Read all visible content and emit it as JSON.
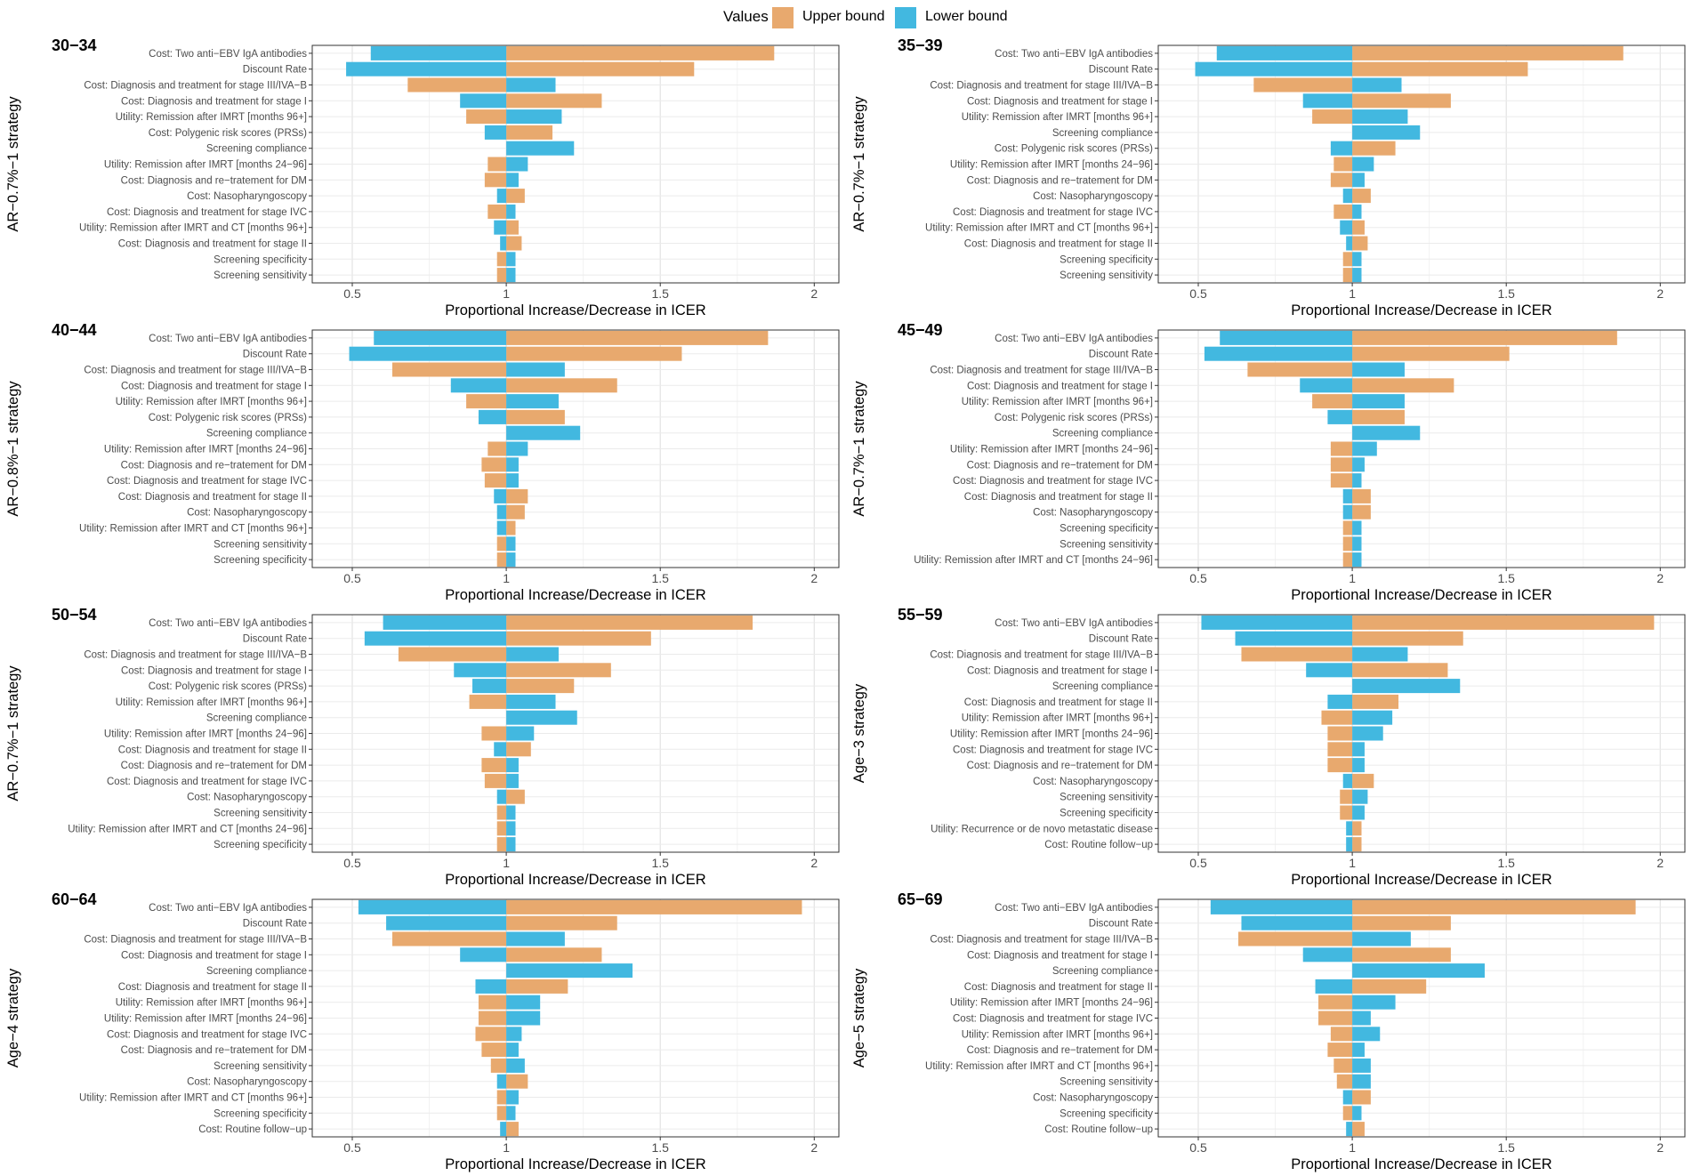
{
  "legend": {
    "title": "Values",
    "items": [
      {
        "label": "Upper bound",
        "color": "#E8A96E"
      },
      {
        "label": "Lower bound",
        "color": "#42B8E0"
      }
    ]
  },
  "chart_data": [
    {
      "type": "bar",
      "orientation": "tornado",
      "panel_title": "30−34",
      "ylabel": "AR−0.7%−1 strategy",
      "xlabel": "Proportional Increase/Decrease in ICER",
      "xlim": [
        0.37,
        2.08
      ],
      "baseline": 1,
      "xticks": [
        0.5,
        1,
        1.5,
        2
      ],
      "categories": [
        "Cost: Two anti−EBV IgA antibodies",
        "Discount Rate",
        "Cost: Diagnosis and treatment for stage III/IVA−B",
        "Cost: Diagnosis and treatment for stage I",
        "Utility: Remission after IMRT [months 96+]",
        "Cost: Polygenic risk scores (PRSs)",
        "Screening compliance",
        "Utility: Remission after IMRT [months 24−96]",
        "Cost: Diagnosis and re−tratement for DM",
        "Cost: Nasopharyngoscopy",
        "Cost: Diagnosis and treatment for stage IVC",
        "Utility: Remission after IMRT and CT [months 96+]",
        "Cost: Diagnosis and treatment for stage II",
        "Screening specificity",
        "Screening sensitivity"
      ],
      "series": [
        {
          "name": "Upper bound",
          "values": [
            1.87,
            1.61,
            0.68,
            1.31,
            0.87,
            1.15,
            1.0,
            0.94,
            0.93,
            1.06,
            0.94,
            1.04,
            1.05,
            0.97,
            0.97
          ]
        },
        {
          "name": "Lower bound",
          "values": [
            0.56,
            0.48,
            1.16,
            0.85,
            1.18,
            0.93,
            1.22,
            1.07,
            1.04,
            0.97,
            1.03,
            0.96,
            0.98,
            1.03,
            1.03
          ]
        }
      ]
    },
    {
      "type": "bar",
      "orientation": "tornado",
      "panel_title": "35−39",
      "ylabel": "AR−0.7%−1 strategy",
      "xlabel": "Proportional Increase/Decrease in ICER",
      "xlim": [
        0.37,
        2.08
      ],
      "baseline": 1,
      "xticks": [
        0.5,
        1,
        1.5,
        2
      ],
      "categories": [
        "Cost: Two anti−EBV IgA antibodies",
        "Discount Rate",
        "Cost: Diagnosis and treatment for stage III/IVA−B",
        "Cost: Diagnosis and treatment for stage I",
        "Utility: Remission after IMRT [months 96+]",
        "Screening compliance",
        "Cost: Polygenic risk scores (PRSs)",
        "Utility: Remission after IMRT [months 24−96]",
        "Cost: Diagnosis and re−tratement for DM",
        "Cost: Nasopharyngoscopy",
        "Cost: Diagnosis and treatment for stage IVC",
        "Utility: Remission after IMRT and CT [months 96+]",
        "Cost: Diagnosis and treatment for stage II",
        "Screening specificity",
        "Screening sensitivity"
      ],
      "series": [
        {
          "name": "Upper bound",
          "values": [
            1.88,
            1.57,
            0.68,
            1.32,
            0.87,
            1.0,
            1.14,
            0.94,
            0.93,
            1.06,
            0.94,
            1.04,
            1.05,
            0.97,
            0.97
          ]
        },
        {
          "name": "Lower bound",
          "values": [
            0.56,
            0.49,
            1.16,
            0.84,
            1.18,
            1.22,
            0.93,
            1.07,
            1.04,
            0.97,
            1.03,
            0.96,
            0.98,
            1.03,
            1.03
          ]
        }
      ]
    },
    {
      "type": "bar",
      "orientation": "tornado",
      "panel_title": "40−44",
      "ylabel": "AR−0.8%−1 strategy",
      "xlabel": "Proportional Increase/Decrease in ICER",
      "xlim": [
        0.37,
        2.08
      ],
      "baseline": 1,
      "xticks": [
        0.5,
        1,
        1.5,
        2
      ],
      "categories": [
        "Cost: Two anti−EBV IgA antibodies",
        "Discount Rate",
        "Cost: Diagnosis and treatment for stage III/IVA−B",
        "Cost: Diagnosis and treatment for stage I",
        "Utility: Remission after IMRT [months 96+]",
        "Cost: Polygenic risk scores (PRSs)",
        "Screening compliance",
        "Utility: Remission after IMRT [months 24−96]",
        "Cost: Diagnosis and re−tratement for DM",
        "Cost: Diagnosis and treatment for stage IVC",
        "Cost: Diagnosis and treatment for stage II",
        "Cost: Nasopharyngoscopy",
        "Utility: Remission after IMRT and CT [months 96+]",
        "Screening sensitivity",
        "Screening specificity"
      ],
      "series": [
        {
          "name": "Upper bound",
          "values": [
            1.85,
            1.57,
            0.63,
            1.36,
            0.87,
            1.19,
            1.0,
            0.94,
            0.92,
            0.93,
            1.07,
            1.06,
            1.03,
            0.97,
            0.97
          ]
        },
        {
          "name": "Lower bound",
          "values": [
            0.57,
            0.49,
            1.19,
            0.82,
            1.17,
            0.91,
            1.24,
            1.07,
            1.04,
            1.04,
            0.96,
            0.97,
            0.97,
            1.03,
            1.03
          ]
        }
      ]
    },
    {
      "type": "bar",
      "orientation": "tornado",
      "panel_title": "45−49",
      "ylabel": "AR−0.7%−1 strategy",
      "xlabel": "Proportional Increase/Decrease in ICER",
      "xlim": [
        0.37,
        2.08
      ],
      "baseline": 1,
      "xticks": [
        0.5,
        1,
        1.5,
        2
      ],
      "categories": [
        "Cost: Two anti−EBV IgA antibodies",
        "Discount Rate",
        "Cost: Diagnosis and treatment for stage III/IVA−B",
        "Cost: Diagnosis and treatment for stage I",
        "Utility: Remission after IMRT [months 96+]",
        "Cost: Polygenic risk scores (PRSs)",
        "Screening compliance",
        "Utility: Remission after IMRT [months 24−96]",
        "Cost: Diagnosis and re−tratement for DM",
        "Cost: Diagnosis and treatment for stage IVC",
        "Cost: Diagnosis and treatment for stage II",
        "Cost: Nasopharyngoscopy",
        "Screening specificity",
        "Screening sensitivity",
        "Utility: Remission after IMRT and CT [months 24−96]"
      ],
      "series": [
        {
          "name": "Upper bound",
          "values": [
            1.86,
            1.51,
            0.66,
            1.33,
            0.87,
            1.17,
            1.0,
            0.93,
            0.93,
            0.93,
            1.06,
            1.06,
            0.97,
            0.97,
            0.97
          ]
        },
        {
          "name": "Lower bound",
          "values": [
            0.57,
            0.52,
            1.17,
            0.83,
            1.17,
            0.92,
            1.22,
            1.08,
            1.04,
            1.03,
            0.97,
            0.97,
            1.03,
            1.03,
            1.03
          ]
        }
      ]
    },
    {
      "type": "bar",
      "orientation": "tornado",
      "panel_title": "50−54",
      "ylabel": "AR−0.7%−1 strategy",
      "xlabel": "Proportional Increase/Decrease in ICER",
      "xlim": [
        0.37,
        2.08
      ],
      "baseline": 1,
      "xticks": [
        0.5,
        1,
        1.5,
        2
      ],
      "categories": [
        "Cost: Two anti−EBV IgA antibodies",
        "Discount Rate",
        "Cost: Diagnosis and treatment for stage III/IVA−B",
        "Cost: Diagnosis and treatment for stage I",
        "Cost: Polygenic risk scores (PRSs)",
        "Utility: Remission after IMRT [months 96+]",
        "Screening compliance",
        "Utility: Remission after IMRT [months 24−96]",
        "Cost: Diagnosis and treatment for stage II",
        "Cost: Diagnosis and re−tratement for DM",
        "Cost: Diagnosis and treatment for stage IVC",
        "Cost: Nasopharyngoscopy",
        "Screening sensitivity",
        "Utility: Remission after IMRT and CT [months 24−96]",
        "Screening specificity"
      ],
      "series": [
        {
          "name": "Upper bound",
          "values": [
            1.8,
            1.47,
            0.65,
            1.34,
            1.22,
            0.88,
            1.0,
            0.92,
            1.08,
            0.92,
            0.93,
            1.06,
            0.97,
            0.97,
            0.97
          ]
        },
        {
          "name": "Lower bound",
          "values": [
            0.6,
            0.54,
            1.17,
            0.83,
            0.89,
            1.16,
            1.23,
            1.09,
            0.96,
            1.04,
            1.04,
            0.97,
            1.03,
            1.03,
            1.03
          ]
        }
      ]
    },
    {
      "type": "bar",
      "orientation": "tornado",
      "panel_title": "55−59",
      "ylabel": "Age−3 strategy",
      "xlabel": "Proportional Increase/Decrease in ICER",
      "xlim": [
        0.37,
        2.08
      ],
      "baseline": 1,
      "xticks": [
        0.5,
        1,
        1.5,
        2
      ],
      "categories": [
        "Cost: Two anti−EBV IgA antibodies",
        "Discount Rate",
        "Cost: Diagnosis and treatment for stage III/IVA−B",
        "Cost: Diagnosis and treatment for stage I",
        "Screening compliance",
        "Cost: Diagnosis and treatment for stage II",
        "Utility: Remission after IMRT [months 96+]",
        "Utility: Remission after IMRT [months 24−96]",
        "Cost: Diagnosis and treatment for stage IVC",
        "Cost: Diagnosis and re−tratement for DM",
        "Cost: Nasopharyngoscopy",
        "Screening sensitivity",
        "Screening specificity",
        "Utility: Recurrence or de novo metastatic disease",
        "Cost: Routine follow−up"
      ],
      "series": [
        {
          "name": "Upper bound",
          "values": [
            1.98,
            1.36,
            0.64,
            1.31,
            1.0,
            1.15,
            0.9,
            0.92,
            0.92,
            0.92,
            1.07,
            0.96,
            0.96,
            1.03,
            1.03
          ]
        },
        {
          "name": "Lower bound",
          "values": [
            0.51,
            0.62,
            1.18,
            0.85,
            1.35,
            0.92,
            1.13,
            1.1,
            1.04,
            1.04,
            0.97,
            1.05,
            1.04,
            0.98,
            0.98
          ]
        }
      ]
    },
    {
      "type": "bar",
      "orientation": "tornado",
      "panel_title": "60−64",
      "ylabel": "Age−4 strategy",
      "xlabel": "Proportional Increase/Decrease in ICER",
      "xlim": [
        0.37,
        2.08
      ],
      "baseline": 1,
      "xticks": [
        0.5,
        1,
        1.5,
        2
      ],
      "categories": [
        "Cost: Two anti−EBV IgA antibodies",
        "Discount Rate",
        "Cost: Diagnosis and treatment for stage III/IVA−B",
        "Cost: Diagnosis and treatment for stage I",
        "Screening compliance",
        "Cost: Diagnosis and treatment for stage II",
        "Utility: Remission after IMRT [months 96+]",
        "Utility: Remission after IMRT [months 24−96]",
        "Cost: Diagnosis and treatment for stage IVC",
        "Cost: Diagnosis and re−tratement for DM",
        "Screening sensitivity",
        "Cost: Nasopharyngoscopy",
        "Utility: Remission after IMRT and CT [months 96+]",
        "Screening specificity",
        "Cost: Routine follow−up"
      ],
      "series": [
        {
          "name": "Upper bound",
          "values": [
            1.96,
            1.36,
            0.63,
            1.31,
            1.0,
            1.2,
            0.91,
            0.91,
            0.9,
            0.92,
            0.95,
            1.07,
            0.97,
            0.97,
            1.04
          ]
        },
        {
          "name": "Lower bound",
          "values": [
            0.52,
            0.61,
            1.19,
            0.85,
            1.41,
            0.9,
            1.11,
            1.11,
            1.05,
            1.04,
            1.06,
            0.97,
            1.04,
            1.03,
            0.98
          ]
        }
      ]
    },
    {
      "type": "bar",
      "orientation": "tornado",
      "panel_title": "65−69",
      "ylabel": "Age−5 strategy",
      "xlabel": "Proportional Increase/Decrease in ICER",
      "xlim": [
        0.37,
        2.08
      ],
      "baseline": 1,
      "xticks": [
        0.5,
        1,
        1.5,
        2
      ],
      "categories": [
        "Cost: Two anti−EBV IgA antibodies",
        "Discount Rate",
        "Cost: Diagnosis and treatment for stage III/IVA−B",
        "Cost: Diagnosis and treatment for stage I",
        "Screening compliance",
        "Cost: Diagnosis and treatment for stage II",
        "Utility: Remission after IMRT [months 24−96]",
        "Cost: Diagnosis and treatment for stage IVC",
        "Utility: Remission after IMRT [months 96+]",
        "Cost: Diagnosis and re−tratement for DM",
        "Utility: Remission after IMRT and CT [months 96+]",
        "Screening sensitivity",
        "Cost: Nasopharyngoscopy",
        "Screening specificity",
        "Cost: Routine follow−up"
      ],
      "series": [
        {
          "name": "Upper bound",
          "values": [
            1.92,
            1.32,
            0.63,
            1.32,
            1.0,
            1.24,
            0.89,
            0.89,
            0.93,
            0.92,
            0.94,
            0.95,
            1.06,
            0.97,
            1.04
          ]
        },
        {
          "name": "Lower bound",
          "values": [
            0.54,
            0.64,
            1.19,
            0.84,
            1.43,
            0.88,
            1.14,
            1.06,
            1.09,
            1.04,
            1.06,
            1.06,
            0.97,
            1.03,
            0.98
          ]
        }
      ]
    }
  ]
}
